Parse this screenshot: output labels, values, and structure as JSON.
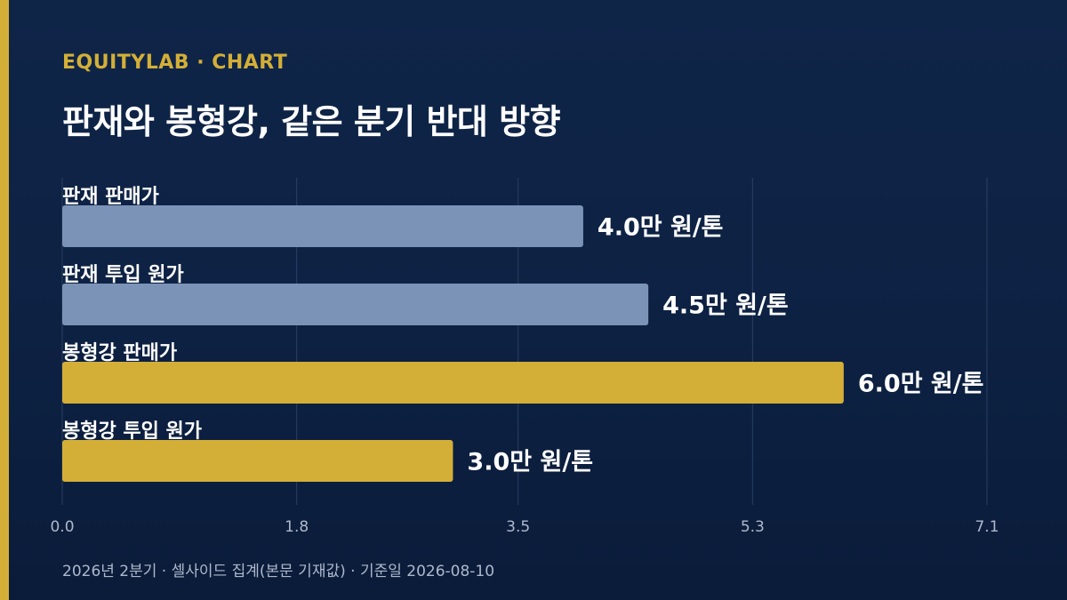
{
  "header": {
    "brand": "EQUITYLAB · CHART",
    "title": "판재와 봉형강, 같은 분기 반대 방향"
  },
  "footer": {
    "note": "2026년 2분기 · 셀사이드 집계(본문 기재값) · 기준일 2026-08-10"
  },
  "colors": {
    "background": "#0d2143",
    "accent": "#d4af37",
    "plate": "#7b93b6",
    "section_steel": "#d4af37",
    "grid": "#2a3f63",
    "tick": "#aeb8cb"
  },
  "chart_data": {
    "type": "bar",
    "orientation": "horizontal",
    "title": "판재와 봉형강, 같은 분기 반대 방향",
    "categories": [
      "판재 판매가",
      "판재 투입 원가",
      "봉형강 판매가",
      "봉형강 투입 원가"
    ],
    "values": [
      4.0,
      4.5,
      6.0,
      3.0
    ],
    "value_labels": [
      "4.0만 원/톤",
      "4.5만 원/톤",
      "6.0만 원/톤",
      "3.0만 원/톤"
    ],
    "unit": "만 원/톤",
    "bar_colors": [
      "#7b93b6",
      "#7b93b6",
      "#d4af37",
      "#d4af37"
    ],
    "xlim": [
      0,
      7.1
    ],
    "xticks": [
      "0.0",
      "1.8",
      "3.5",
      "5.3",
      "7.1"
    ],
    "grid": true,
    "xlabel": "",
    "ylabel": ""
  }
}
